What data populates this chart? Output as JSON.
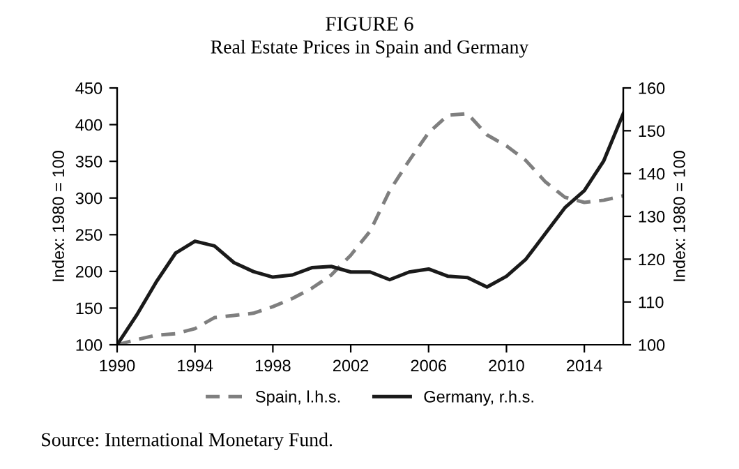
{
  "chart_data": {
    "type": "line",
    "title": "FIGURE 6",
    "subtitle": "Real Estate Prices in Spain and Germany",
    "x": [
      1990,
      1991,
      1992,
      1993,
      1994,
      1995,
      1996,
      1997,
      1998,
      1999,
      2000,
      2001,
      2002,
      2003,
      2004,
      2005,
      2006,
      2007,
      2008,
      2009,
      2010,
      2011,
      2012,
      2013,
      2014,
      2015,
      2016
    ],
    "series": [
      {
        "name": "Spain, l.h.s.",
        "color": "#7f7f7f",
        "line_style": "dashed",
        "values": [
          100,
          107,
          113,
          115,
          122,
          137,
          140,
          143,
          152,
          163,
          177,
          195,
          222,
          255,
          310,
          351,
          389,
          413,
          415,
          386,
          371,
          351,
          322,
          301,
          294,
          297,
          303
        ]
      },
      {
        "name": "Germany, r.h.s.",
        "color": "#1a1a1a",
        "line_style": "solid",
        "axis": "y2",
        "values": [
          100,
          106.9,
          114.6,
          121.4,
          124.2,
          123.1,
          119.2,
          117.1,
          115.8,
          116.3,
          118.0,
          118.3,
          117.0,
          117.0,
          115.2,
          117.0,
          117.7,
          116.0,
          115.7,
          113.5,
          116.0,
          120.0,
          126.0,
          132.0,
          136.0,
          143.0,
          154.0
        ]
      }
    ],
    "xlim": [
      1990,
      2016
    ],
    "xticks": [
      1990,
      1994,
      1998,
      2002,
      2006,
      2010,
      2014
    ],
    "ylim": [
      100,
      450
    ],
    "yticks": [
      100,
      150,
      200,
      250,
      300,
      350,
      400,
      450
    ],
    "y2lim": [
      100,
      160
    ],
    "y2ticks": [
      100,
      110,
      120,
      130,
      140,
      150,
      160
    ],
    "ylabel": "Index: 1980 = 100",
    "y2label": "Index: 1980 = 100",
    "legend": "bottom",
    "grid": false,
    "annotations": [
      "Source: International Monetary Fund."
    ]
  }
}
